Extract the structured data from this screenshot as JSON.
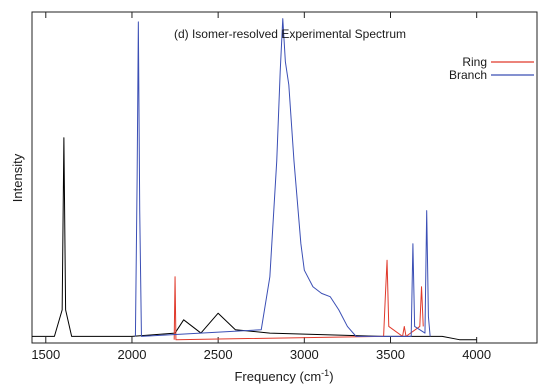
{
  "chart_data": {
    "type": "line",
    "title": "(d) Isomer-resolved Experimental Spectrum",
    "xlabel": "Frequency (cm",
    "xlabel_superscript": "-1",
    "xlabel_suffix": ")",
    "ylabel": "Intensity",
    "xlim": [
      1420,
      4350
    ],
    "ylim": [
      0,
      1.0
    ],
    "x_ticks": [
      1500,
      2000,
      2500,
      3000,
      3500,
      4000
    ],
    "y_ticks_labeled": false,
    "grid": false,
    "legend_position": "top-right",
    "series": [
      {
        "name": "",
        "color": "#000000",
        "points": [
          [
            1420,
            0.02
          ],
          [
            1550,
            0.02
          ],
          [
            1595,
            0.1
          ],
          [
            1605,
            0.62
          ],
          [
            1615,
            0.1
          ],
          [
            1650,
            0.02
          ],
          [
            2000,
            0.02
          ],
          [
            2250,
            0.03
          ],
          [
            2300,
            0.07
          ],
          [
            2400,
            0.03
          ],
          [
            2500,
            0.09
          ],
          [
            2600,
            0.04
          ],
          [
            2800,
            0.03
          ],
          [
            3450,
            0.02
          ],
          [
            3600,
            0.02
          ],
          [
            3800,
            0.02
          ],
          [
            3900,
            0.01
          ],
          [
            4000,
            0.01
          ]
        ]
      },
      {
        "name": "Ring",
        "color": "#e0392b",
        "points": [
          [
            2245,
            0.01
          ],
          [
            2250,
            0.2
          ],
          [
            2255,
            0.01
          ],
          [
            3460,
            0.02
          ],
          [
            3470,
            0.14
          ],
          [
            3480,
            0.25
          ],
          [
            3490,
            0.05
          ],
          [
            3570,
            0.02
          ],
          [
            3580,
            0.05
          ],
          [
            3590,
            0.02
          ],
          [
            3670,
            0.05
          ],
          [
            3680,
            0.17
          ],
          [
            3690,
            0.05
          ]
        ]
      },
      {
        "name": "Branch",
        "color": "#3b4fb5",
        "points": [
          [
            2020,
            0.02
          ],
          [
            2030,
            0.5
          ],
          [
            2037,
            0.97
          ],
          [
            2045,
            0.4
          ],
          [
            2055,
            0.02
          ],
          [
            2750,
            0.04
          ],
          [
            2800,
            0.2
          ],
          [
            2840,
            0.55
          ],
          [
            2860,
            0.82
          ],
          [
            2875,
            0.98
          ],
          [
            2890,
            0.85
          ],
          [
            2910,
            0.78
          ],
          [
            2940,
            0.55
          ],
          [
            2980,
            0.3
          ],
          [
            3000,
            0.22
          ],
          [
            3050,
            0.17
          ],
          [
            3100,
            0.15
          ],
          [
            3150,
            0.14
          ],
          [
            3200,
            0.1
          ],
          [
            3250,
            0.05
          ],
          [
            3300,
            0.02
          ],
          [
            3620,
            0.02
          ],
          [
            3630,
            0.3
          ],
          [
            3640,
            0.05
          ],
          [
            3700,
            0.03
          ],
          [
            3710,
            0.4
          ],
          [
            3720,
            0.08
          ],
          [
            3730,
            0.02
          ]
        ]
      }
    ]
  }
}
